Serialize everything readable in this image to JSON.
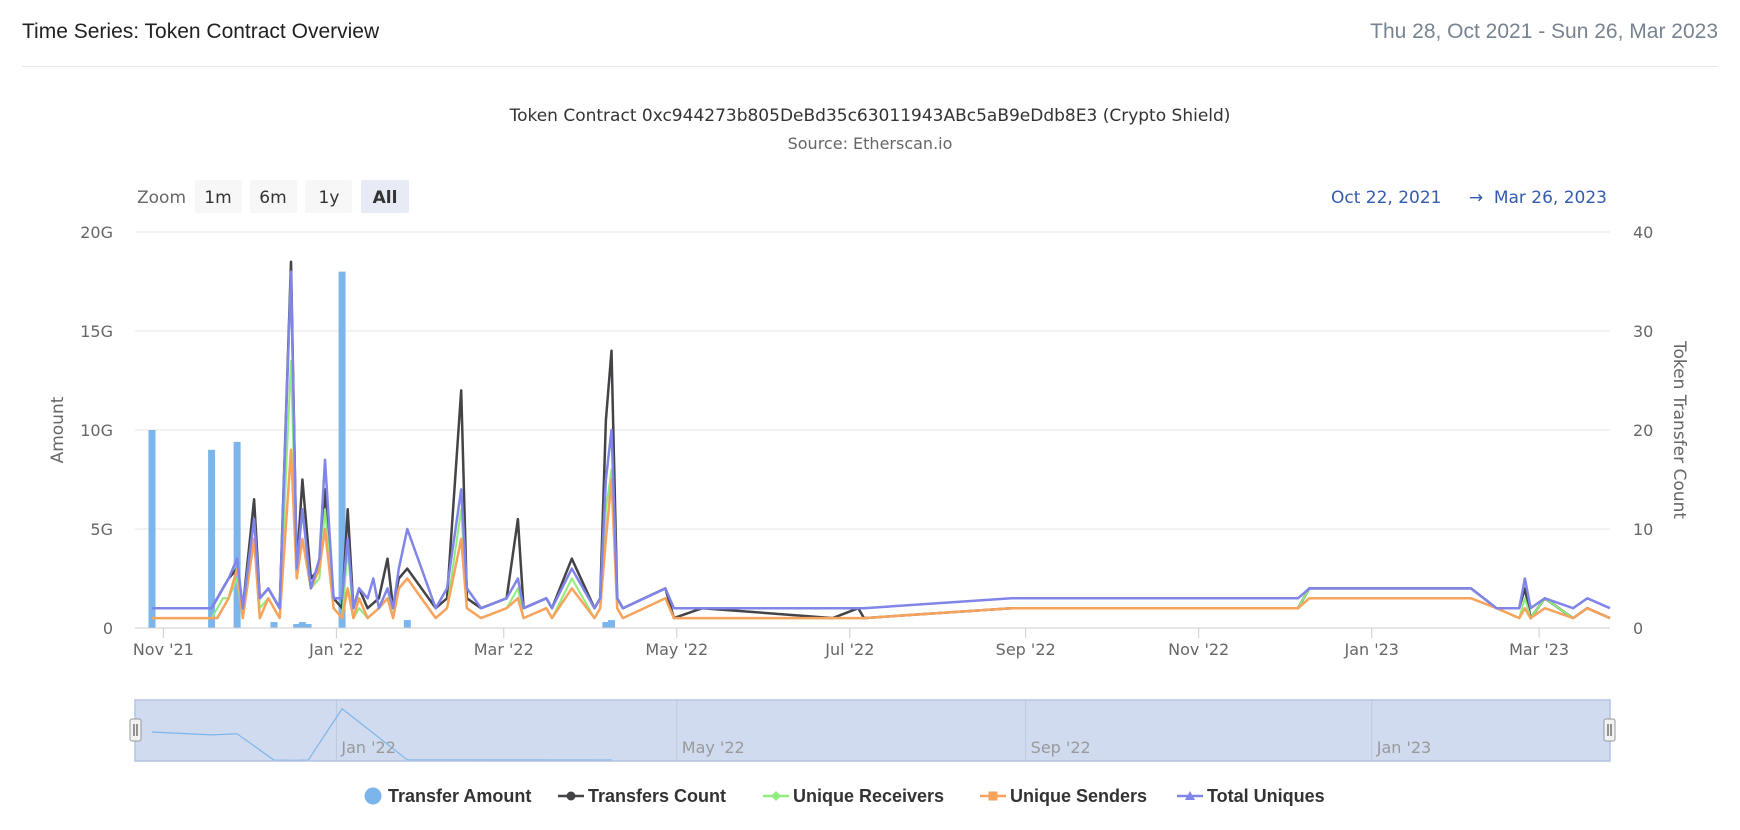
{
  "header": {
    "title": "Time Series: Token Contract Overview",
    "date_range": "Thu 28, Oct 2021 - Sun 26, Mar 2023"
  },
  "zoom": {
    "label": "Zoom",
    "buttons": [
      "1m",
      "6m",
      "1y",
      "All"
    ],
    "active": "All"
  },
  "range_selector": {
    "from": "Oct 22, 2021",
    "arrow": "→",
    "to": "Mar 26, 2023"
  },
  "colors": {
    "transfer_amount": "#7cb5ec",
    "transfers_count": "#434348",
    "unique_receivers": "#90ed7d",
    "unique_senders": "#f7a35c",
    "total_uniques": "#8085e9",
    "gridline": "#e6e6e6",
    "navigator_fill": "#d0dbef"
  },
  "chart_data": {
    "type": "line",
    "title": "Token Contract 0xc944273b805DeBd35c63011943ABc5aB9eDdb8E3 (Crypto Shield)",
    "subtitle": "Source: Etherscan.io",
    "x_range": [
      "2021-10-22",
      "2023-03-26"
    ],
    "y_left": {
      "label": "Amount",
      "min": 0,
      "max": 20,
      "ticks": [
        "0",
        "5G",
        "10G",
        "15G",
        "20G"
      ],
      "tick_values": [
        0,
        5,
        10,
        15,
        20
      ]
    },
    "y_right": {
      "label": "Token Transfer Count",
      "min": 0,
      "max": 40,
      "ticks": [
        "0",
        "10",
        "20",
        "30",
        "40"
      ],
      "tick_values": [
        0,
        10,
        20,
        30,
        40
      ]
    },
    "x_ticks": [
      {
        "date": "2021-11-01",
        "label": "Nov '21"
      },
      {
        "date": "2022-01-01",
        "label": "Jan '22"
      },
      {
        "date": "2022-03-01",
        "label": "Mar '22"
      },
      {
        "date": "2022-05-01",
        "label": "May '22"
      },
      {
        "date": "2022-07-01",
        "label": "Jul '22"
      },
      {
        "date": "2022-09-01",
        "label": "Sep '22"
      },
      {
        "date": "2022-11-01",
        "label": "Nov '22"
      },
      {
        "date": "2023-01-01",
        "label": "Jan '23"
      },
      {
        "date": "2023-03-01",
        "label": "Mar '23"
      }
    ],
    "navigator_labels": [
      {
        "date": "2022-01-01",
        "label": "Jan '22"
      },
      {
        "date": "2022-05-01",
        "label": "May '22"
      },
      {
        "date": "2022-09-01",
        "label": "Sep '22"
      },
      {
        "date": "2023-01-01",
        "label": "Jan '23"
      }
    ],
    "series": [
      {
        "name": "Transfer Amount",
        "kind": "column",
        "axis": "left",
        "marker": "circle",
        "points": [
          [
            "2021-10-28",
            10
          ],
          [
            "2021-11-18",
            9
          ],
          [
            "2021-11-27",
            9.4
          ],
          [
            "2021-12-10",
            0.3
          ],
          [
            "2021-12-18",
            0.2
          ],
          [
            "2021-12-20",
            0.3
          ],
          [
            "2021-12-22",
            0.2
          ],
          [
            "2022-01-03",
            18
          ],
          [
            "2022-01-26",
            0.4
          ],
          [
            "2022-04-06",
            0.3
          ],
          [
            "2022-04-08",
            0.4
          ]
        ]
      },
      {
        "name": "Transfers Count",
        "kind": "line",
        "axis": "right",
        "marker": "circle",
        "points": [
          [
            "2021-10-28",
            2
          ],
          [
            "2021-11-18",
            2
          ],
          [
            "2021-11-20",
            3
          ],
          [
            "2021-11-22",
            4
          ],
          [
            "2021-11-24",
            5
          ],
          [
            "2021-11-27",
            6
          ],
          [
            "2021-11-29",
            2
          ],
          [
            "2021-12-03",
            13
          ],
          [
            "2021-12-05",
            3
          ],
          [
            "2021-12-08",
            4
          ],
          [
            "2021-12-12",
            2
          ],
          [
            "2021-12-16",
            37
          ],
          [
            "2021-12-18",
            6
          ],
          [
            "2021-12-20",
            15
          ],
          [
            "2021-12-23",
            5
          ],
          [
            "2021-12-26",
            6
          ],
          [
            "2021-12-28",
            14
          ],
          [
            "2021-12-31",
            3
          ],
          [
            "2022-01-03",
            2
          ],
          [
            "2022-01-05",
            12
          ],
          [
            "2022-01-07",
            2
          ],
          [
            "2022-01-09",
            4
          ],
          [
            "2022-01-12",
            2
          ],
          [
            "2022-01-16",
            3
          ],
          [
            "2022-01-19",
            7
          ],
          [
            "2022-01-21",
            2
          ],
          [
            "2022-01-23",
            5
          ],
          [
            "2022-01-26",
            6
          ],
          [
            "2022-02-05",
            2
          ],
          [
            "2022-02-09",
            3
          ],
          [
            "2022-02-14",
            24
          ],
          [
            "2022-02-16",
            3
          ],
          [
            "2022-02-21",
            2
          ],
          [
            "2022-03-02",
            3
          ],
          [
            "2022-03-06",
            11
          ],
          [
            "2022-03-08",
            2
          ],
          [
            "2022-03-16",
            3
          ],
          [
            "2022-03-18",
            2
          ],
          [
            "2022-03-25",
            7
          ],
          [
            "2022-04-02",
            2
          ],
          [
            "2022-04-04",
            3
          ],
          [
            "2022-04-06",
            21
          ],
          [
            "2022-04-08",
            28
          ],
          [
            "2022-04-10",
            3
          ],
          [
            "2022-04-12",
            2
          ],
          [
            "2022-04-27",
            4
          ],
          [
            "2022-04-30",
            1
          ],
          [
            "2022-05-10",
            2
          ],
          [
            "2022-06-25",
            1
          ],
          [
            "2022-07-04",
            2
          ],
          [
            "2022-07-06",
            1
          ],
          [
            "2022-08-27",
            2
          ],
          [
            "2022-12-06",
            2
          ],
          [
            "2022-12-10",
            4
          ],
          [
            "2023-02-05",
            4
          ],
          [
            "2023-02-14",
            2
          ],
          [
            "2023-02-22",
            2
          ],
          [
            "2023-02-24",
            4
          ],
          [
            "2023-02-26",
            1
          ],
          [
            "2023-03-03",
            3
          ],
          [
            "2023-03-13",
            1
          ],
          [
            "2023-03-18",
            2
          ],
          [
            "2023-03-26",
            1
          ]
        ]
      },
      {
        "name": "Unique Receivers",
        "kind": "line",
        "axis": "right",
        "marker": "diamond",
        "points": [
          [
            "2021-10-28",
            1
          ],
          [
            "2021-11-18",
            1
          ],
          [
            "2021-11-20",
            2
          ],
          [
            "2021-11-22",
            3
          ],
          [
            "2021-11-24",
            3
          ],
          [
            "2021-11-27",
            5
          ],
          [
            "2021-11-29",
            1
          ],
          [
            "2021-12-03",
            9
          ],
          [
            "2021-12-05",
            2
          ],
          [
            "2021-12-08",
            3
          ],
          [
            "2021-12-12",
            1
          ],
          [
            "2021-12-16",
            27
          ],
          [
            "2021-12-18",
            5
          ],
          [
            "2021-12-20",
            9
          ],
          [
            "2021-12-23",
            4
          ],
          [
            "2021-12-26",
            5
          ],
          [
            "2021-12-28",
            12
          ],
          [
            "2021-12-31",
            2
          ],
          [
            "2022-01-03",
            1
          ],
          [
            "2022-01-05",
            8
          ],
          [
            "2022-01-07",
            1
          ],
          [
            "2022-01-09",
            2
          ],
          [
            "2022-01-12",
            1
          ],
          [
            "2022-01-16",
            2
          ],
          [
            "2022-01-19",
            4
          ],
          [
            "2022-01-21",
            1
          ],
          [
            "2022-01-23",
            4
          ],
          [
            "2022-01-26",
            5
          ],
          [
            "2022-02-05",
            1
          ],
          [
            "2022-02-09",
            2
          ],
          [
            "2022-02-14",
            12
          ],
          [
            "2022-02-16",
            2
          ],
          [
            "2022-02-21",
            1
          ],
          [
            "2022-03-02",
            2
          ],
          [
            "2022-03-06",
            4
          ],
          [
            "2022-03-08",
            1
          ],
          [
            "2022-03-16",
            2
          ],
          [
            "2022-03-18",
            1
          ],
          [
            "2022-03-25",
            5
          ],
          [
            "2022-04-02",
            1
          ],
          [
            "2022-04-04",
            2
          ],
          [
            "2022-04-06",
            12
          ],
          [
            "2022-04-08",
            16
          ],
          [
            "2022-04-10",
            2
          ],
          [
            "2022-04-12",
            1
          ],
          [
            "2022-04-27",
            3
          ],
          [
            "2022-04-30",
            1
          ],
          [
            "2022-06-25",
            1
          ],
          [
            "2022-07-06",
            1
          ],
          [
            "2022-08-27",
            2
          ],
          [
            "2022-12-06",
            2
          ],
          [
            "2022-12-10",
            4
          ],
          [
            "2023-02-05",
            4
          ],
          [
            "2023-02-14",
            2
          ],
          [
            "2023-02-22",
            1
          ],
          [
            "2023-02-24",
            3
          ],
          [
            "2023-02-26",
            1
          ],
          [
            "2023-03-03",
            3
          ],
          [
            "2023-03-13",
            1
          ],
          [
            "2023-03-18",
            2
          ],
          [
            "2023-03-26",
            1
          ]
        ]
      },
      {
        "name": "Unique Senders",
        "kind": "line",
        "axis": "right",
        "marker": "square",
        "points": [
          [
            "2021-10-28",
            1
          ],
          [
            "2021-11-18",
            1
          ],
          [
            "2021-11-20",
            1
          ],
          [
            "2021-11-22",
            2
          ],
          [
            "2021-11-24",
            3
          ],
          [
            "2021-11-27",
            6
          ],
          [
            "2021-11-29",
            1
          ],
          [
            "2021-12-03",
            9
          ],
          [
            "2021-12-05",
            1
          ],
          [
            "2021-12-08",
            3
          ],
          [
            "2021-12-12",
            1
          ],
          [
            "2021-12-16",
            18
          ],
          [
            "2021-12-18",
            5
          ],
          [
            "2021-12-20",
            9
          ],
          [
            "2021-12-23",
            4
          ],
          [
            "2021-12-26",
            6
          ],
          [
            "2021-12-28",
            10
          ],
          [
            "2021-12-31",
            2
          ],
          [
            "2022-01-03",
            1
          ],
          [
            "2022-01-05",
            4
          ],
          [
            "2022-01-07",
            1
          ],
          [
            "2022-01-09",
            3
          ],
          [
            "2022-01-12",
            1
          ],
          [
            "2022-01-16",
            2
          ],
          [
            "2022-01-19",
            3
          ],
          [
            "2022-01-21",
            1
          ],
          [
            "2022-01-23",
            4
          ],
          [
            "2022-01-26",
            5
          ],
          [
            "2022-02-05",
            1
          ],
          [
            "2022-02-09",
            2
          ],
          [
            "2022-02-14",
            9
          ],
          [
            "2022-02-16",
            2
          ],
          [
            "2022-02-21",
            1
          ],
          [
            "2022-03-02",
            2
          ],
          [
            "2022-03-06",
            3
          ],
          [
            "2022-03-08",
            1
          ],
          [
            "2022-03-16",
            2
          ],
          [
            "2022-03-18",
            1
          ],
          [
            "2022-03-25",
            4
          ],
          [
            "2022-04-02",
            1
          ],
          [
            "2022-04-04",
            2
          ],
          [
            "2022-04-06",
            9
          ],
          [
            "2022-04-08",
            15
          ],
          [
            "2022-04-10",
            2
          ],
          [
            "2022-04-12",
            1
          ],
          [
            "2022-04-27",
            3
          ],
          [
            "2022-04-30",
            1
          ],
          [
            "2022-06-25",
            1
          ],
          [
            "2022-07-06",
            1
          ],
          [
            "2022-08-27",
            2
          ],
          [
            "2022-12-06",
            2
          ],
          [
            "2022-12-10",
            3
          ],
          [
            "2023-02-05",
            3
          ],
          [
            "2023-02-14",
            2
          ],
          [
            "2023-02-22",
            1
          ],
          [
            "2023-02-24",
            2
          ],
          [
            "2023-02-26",
            1
          ],
          [
            "2023-03-03",
            2
          ],
          [
            "2023-03-13",
            1
          ],
          [
            "2023-03-18",
            2
          ],
          [
            "2023-03-26",
            1
          ]
        ]
      },
      {
        "name": "Total Uniques",
        "kind": "line",
        "axis": "right",
        "marker": "triangle",
        "points": [
          [
            "2021-10-28",
            2
          ],
          [
            "2021-11-18",
            2
          ],
          [
            "2021-11-20",
            3
          ],
          [
            "2021-11-22",
            4
          ],
          [
            "2021-11-24",
            5
          ],
          [
            "2021-11-27",
            7
          ],
          [
            "2021-11-29",
            2
          ],
          [
            "2021-12-03",
            11
          ],
          [
            "2021-12-05",
            3
          ],
          [
            "2021-12-08",
            4
          ],
          [
            "2021-12-12",
            2
          ],
          [
            "2021-12-16",
            36
          ],
          [
            "2021-12-18",
            6
          ],
          [
            "2021-12-20",
            12
          ],
          [
            "2021-12-23",
            4
          ],
          [
            "2021-12-26",
            7
          ],
          [
            "2021-12-28",
            17
          ],
          [
            "2021-12-31",
            3
          ],
          [
            "2022-01-03",
            3
          ],
          [
            "2022-01-05",
            9
          ],
          [
            "2022-01-07",
            2
          ],
          [
            "2022-01-09",
            4
          ],
          [
            "2022-01-12",
            3
          ],
          [
            "2022-01-14",
            5
          ],
          [
            "2022-01-16",
            2
          ],
          [
            "2022-01-19",
            4
          ],
          [
            "2022-01-21",
            2
          ],
          [
            "2022-01-23",
            6
          ],
          [
            "2022-01-26",
            10
          ],
          [
            "2022-02-05",
            2
          ],
          [
            "2022-02-09",
            4
          ],
          [
            "2022-02-14",
            14
          ],
          [
            "2022-02-16",
            4
          ],
          [
            "2022-02-21",
            2
          ],
          [
            "2022-03-02",
            3
          ],
          [
            "2022-03-06",
            5
          ],
          [
            "2022-03-08",
            2
          ],
          [
            "2022-03-16",
            3
          ],
          [
            "2022-03-18",
            2
          ],
          [
            "2022-03-25",
            6
          ],
          [
            "2022-04-02",
            2
          ],
          [
            "2022-04-04",
            3
          ],
          [
            "2022-04-06",
            15
          ],
          [
            "2022-04-08",
            20
          ],
          [
            "2022-04-10",
            3
          ],
          [
            "2022-04-12",
            2
          ],
          [
            "2022-04-27",
            4
          ],
          [
            "2022-04-30",
            2
          ],
          [
            "2022-07-06",
            2
          ],
          [
            "2022-08-27",
            3
          ],
          [
            "2022-12-06",
            3
          ],
          [
            "2022-12-10",
            4
          ],
          [
            "2023-02-05",
            4
          ],
          [
            "2023-02-14",
            2
          ],
          [
            "2023-02-22",
            2
          ],
          [
            "2023-02-24",
            5
          ],
          [
            "2023-02-26",
            2
          ],
          [
            "2023-03-03",
            3
          ],
          [
            "2023-03-13",
            2
          ],
          [
            "2023-03-18",
            3
          ],
          [
            "2023-03-26",
            2
          ]
        ]
      }
    ]
  }
}
